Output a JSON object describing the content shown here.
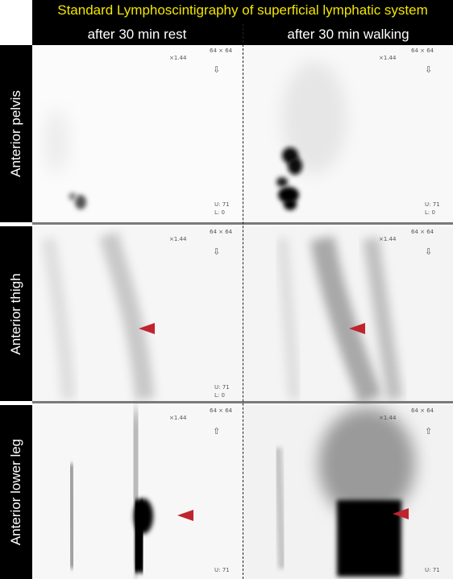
{
  "header": {
    "title": "Standard Lymphoscintigraphy of superficial lymphatic system",
    "columns": [
      "after 30 min rest",
      "after 30 min walking"
    ]
  },
  "rows": [
    "Anterior pelvis",
    "Anterior thigh",
    "Anterior lower leg"
  ],
  "panel_overlay": {
    "matrix": "64 × 64",
    "zoom": "×1.44",
    "u_label": "U:",
    "u_value": "71",
    "l_label": "L:",
    "l_value": "0"
  },
  "colors": {
    "title": "#f2e600",
    "label_background": "#000000",
    "marker_arrow": "#c0242e"
  }
}
